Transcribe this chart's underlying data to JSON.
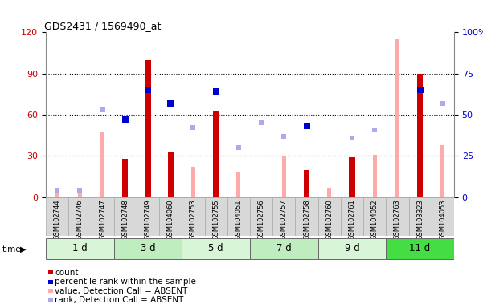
{
  "title": "GDS2431 / 1569490_at",
  "samples": [
    "GSM102744",
    "GSM102746",
    "GSM102747",
    "GSM102748",
    "GSM102749",
    "GSM104060",
    "GSM102753",
    "GSM102755",
    "GSM104051",
    "GSM102756",
    "GSM102757",
    "GSM102758",
    "GSM102760",
    "GSM102761",
    "GSM104052",
    "GSM102763",
    "GSM103323",
    "GSM104053"
  ],
  "time_groups": [
    {
      "label": "1 d",
      "indices": [
        0,
        1,
        2
      ],
      "color": "#d8f5d8"
    },
    {
      "label": "3 d",
      "indices": [
        3,
        4,
        5
      ],
      "color": "#c0edc0"
    },
    {
      "label": "5 d",
      "indices": [
        6,
        7,
        8
      ],
      "color": "#d8f5d8"
    },
    {
      "label": "7 d",
      "indices": [
        9,
        10,
        11
      ],
      "color": "#c0edc0"
    },
    {
      "label": "9 d",
      "indices": [
        12,
        13,
        14
      ],
      "color": "#d8f5d8"
    },
    {
      "label": "11 d",
      "indices": [
        15,
        16,
        17
      ],
      "color": "#44dd44"
    }
  ],
  "count": [
    null,
    null,
    null,
    28,
    100,
    33,
    null,
    63,
    null,
    null,
    null,
    20,
    null,
    29,
    null,
    null,
    90,
    null
  ],
  "percentile_rank": [
    null,
    null,
    null,
    47,
    65,
    57,
    null,
    64,
    null,
    null,
    null,
    43,
    null,
    null,
    null,
    null,
    65,
    null
  ],
  "value_absent": [
    3,
    3,
    48,
    null,
    null,
    null,
    22,
    null,
    18,
    null,
    30,
    null,
    7,
    null,
    31,
    115,
    null,
    38
  ],
  "rank_absent": [
    4,
    4,
    53,
    null,
    null,
    null,
    42,
    null,
    30,
    45,
    37,
    null,
    null,
    36,
    41,
    null,
    null,
    57
  ],
  "left_ylim": [
    0,
    120
  ],
  "right_ylim": [
    0,
    100
  ],
  "left_yticks": [
    0,
    30,
    60,
    90,
    120
  ],
  "right_yticks": [
    0,
    25,
    50,
    75,
    100
  ],
  "right_yticklabels": [
    "0",
    "25",
    "50",
    "75",
    "100%"
  ],
  "count_color": "#cc0000",
  "percentile_color": "#0000cc",
  "value_absent_color": "#ffaaaa",
  "rank_absent_color": "#aaaaee",
  "count_bar_width": 0.25,
  "value_bar_width": 0.18
}
